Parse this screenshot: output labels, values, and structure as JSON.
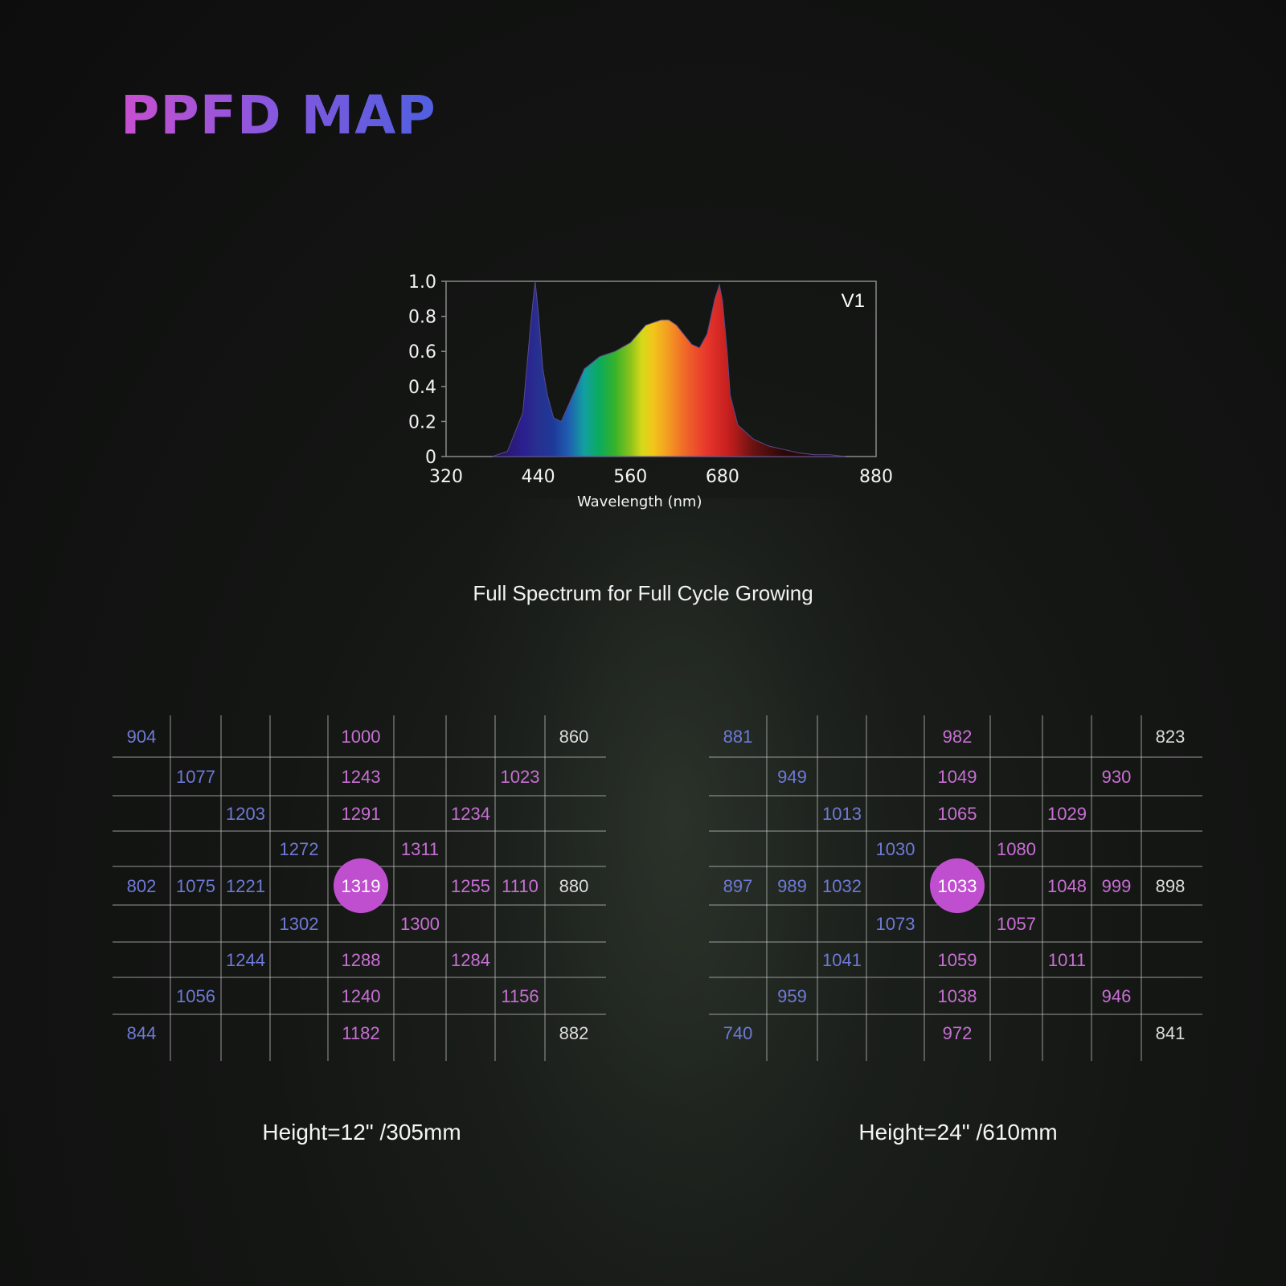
{
  "page": {
    "title": "PPFD MAP",
    "spectrum_caption": "Full Spectrum for Full Cycle Growing"
  },
  "colors": {
    "accent_pink": "#c94fd0",
    "accent_blue": "#4f5fe0",
    "cell_pink": "#c86fd4",
    "cell_blue": "#6e7ad6",
    "grid": "#cfcfcf"
  },
  "chart_data": [
    {
      "type": "area",
      "title": "",
      "legend": "V1",
      "xlabel": "Wavelength (nm)",
      "ylabel": "",
      "xlim": [
        320,
        880
      ],
      "ylim": [
        0,
        1.0
      ],
      "x_ticks": [
        "320",
        "440",
        "560",
        "680",
        "880"
      ],
      "y_ticks": [
        "1.0",
        "0.8",
        "0.6",
        "0.4",
        "0.2",
        "0"
      ],
      "series": [
        {
          "name": "V1",
          "x": [
            380,
            400,
            420,
            430,
            436,
            440,
            446,
            452,
            460,
            470,
            480,
            500,
            520,
            540,
            560,
            580,
            600,
            610,
            620,
            640,
            650,
            660,
            670,
            676,
            680,
            686,
            690,
            700,
            720,
            740,
            760,
            780,
            800,
            820,
            840
          ],
          "values": [
            0.0,
            0.03,
            0.25,
            0.75,
            1.0,
            0.83,
            0.5,
            0.35,
            0.22,
            0.2,
            0.3,
            0.5,
            0.57,
            0.6,
            0.65,
            0.75,
            0.78,
            0.78,
            0.75,
            0.64,
            0.62,
            0.7,
            0.9,
            0.98,
            0.89,
            0.6,
            0.35,
            0.18,
            0.1,
            0.06,
            0.04,
            0.02,
            0.01,
            0.01,
            0.0
          ]
        }
      ]
    },
    {
      "type": "table",
      "title": "Height=12\" /305mm",
      "highlight": "1319",
      "rows": [
        [
          "904",
          "",
          "",
          "",
          "1000",
          "",
          "",
          "",
          "860"
        ],
        [
          "",
          "1077",
          "",
          "",
          "1243",
          "",
          "",
          "1023",
          ""
        ],
        [
          "",
          "",
          "1203",
          "",
          "1291",
          "",
          "1234",
          "",
          ""
        ],
        [
          "",
          "",
          "",
          "1272",
          "",
          "1311",
          "",
          "",
          ""
        ],
        [
          "802",
          "1075",
          "1221",
          "",
          "1319",
          "",
          "1255",
          "1110",
          "880"
        ],
        [
          "",
          "",
          "",
          "1302",
          "",
          "1300",
          "",
          "",
          ""
        ],
        [
          "",
          "",
          "1244",
          "",
          "1288",
          "",
          "1284",
          "",
          ""
        ],
        [
          "",
          "1056",
          "",
          "",
          "1240",
          "",
          "",
          "1156",
          ""
        ],
        [
          "844",
          "",
          "",
          "",
          "1182",
          "",
          "",
          "",
          "882"
        ]
      ]
    },
    {
      "type": "table",
      "title": "Height=24\" /610mm",
      "highlight": "1033",
      "rows": [
        [
          "881",
          "",
          "",
          "",
          "982",
          "",
          "",
          "",
          "823"
        ],
        [
          "",
          "949",
          "",
          "",
          "1049",
          "",
          "",
          "930",
          ""
        ],
        [
          "",
          "",
          "1013",
          "",
          "1065",
          "",
          "1029",
          "",
          ""
        ],
        [
          "",
          "",
          "",
          "1030",
          "",
          "1080",
          "",
          "",
          ""
        ],
        [
          "897",
          "989",
          "1032",
          "",
          "1033",
          "",
          "1048",
          "999",
          "898"
        ],
        [
          "",
          "",
          "",
          "1073",
          "",
          "1057",
          "",
          "",
          ""
        ],
        [
          "",
          "",
          "1041",
          "",
          "1059",
          "",
          "1011",
          "",
          ""
        ],
        [
          "",
          "959",
          "",
          "",
          "1038",
          "",
          "",
          "946",
          ""
        ],
        [
          "740",
          "",
          "",
          "",
          "972",
          "",
          "",
          "",
          "841"
        ]
      ]
    }
  ]
}
